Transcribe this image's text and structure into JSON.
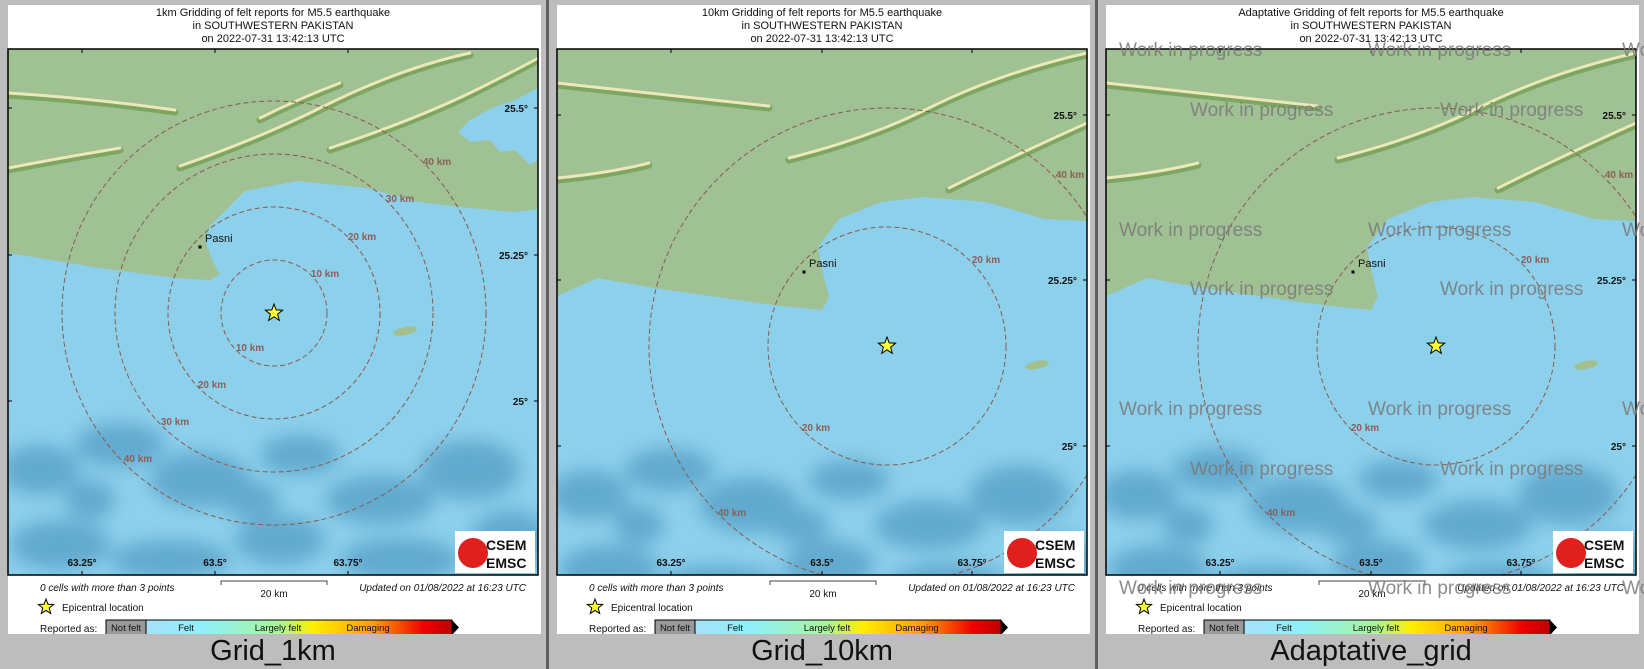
{
  "common": {
    "title_line2": "in SOUTHWESTERN PAKISTAN",
    "title_line3": "on  2022-07-31 13:42:13 UTC",
    "city": "Pasni",
    "lon_ticks": [
      "63.25°",
      "63.5°",
      "63.75°"
    ],
    "lat_ticks": [
      "25.5°",
      "25.25°",
      "25°"
    ],
    "cells_note": "0 cells with more than 3 points",
    "scale_label": "20 km",
    "updated": "Updated on 01/08/2022 at 16:23 UTC",
    "epicenter_legend": "Epicentral location",
    "reported_as": "Reported as:",
    "scale_classes": [
      "Not felt",
      "Felt",
      "Largely felt",
      "Damaging"
    ],
    "logo_top": "CSEM",
    "logo_bottom": "EMSC",
    "colors": {
      "land": "#9fc193",
      "sea": "#8dd0ec",
      "deep": "#3f8bb8",
      "ring": "#8a5a4a",
      "star": "#ffff33",
      "watermark": "#7a7a7a"
    }
  },
  "panels": [
    {
      "title_line1": "1km Gridding of felt reports for M5.5 earthquake",
      "label": "Grid_1km",
      "rings_km": [
        10,
        20,
        30,
        40
      ],
      "ring_labels": [
        "40 km",
        "30 km",
        "20 km",
        "10 km",
        "10 km",
        "20 km",
        "30 km",
        "40 km"
      ],
      "watermark": false
    },
    {
      "title_line1": "10km Gridding of felt reports for M5.5 earthquake",
      "label": "Grid_10km",
      "rings_km": [
        20,
        40
      ],
      "ring_labels": [
        "40 km",
        "20 km",
        "20 km",
        "40 km"
      ],
      "watermark": false
    },
    {
      "title_line1": "Adaptative Gridding of felt reports for M5.5 earthquake",
      "label": "Adaptative_grid",
      "rings_km": [
        20,
        40
      ],
      "ring_labels": [
        "40 km",
        "20 km",
        "20 km",
        "40 km"
      ],
      "watermark": true,
      "watermark_text": "Work in progress"
    }
  ]
}
